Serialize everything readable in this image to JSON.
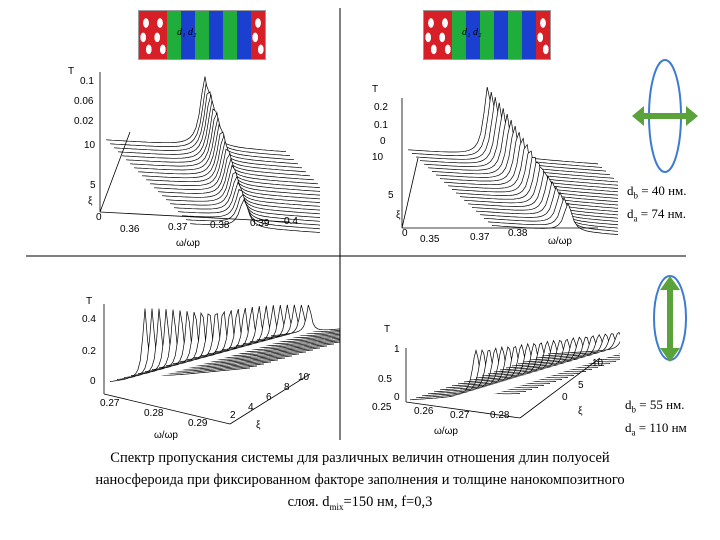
{
  "strip_colors": [
    "#d61f26",
    "#d61f26",
    "#1fae3b",
    "#1b3fcf",
    "#1fae3b",
    "#1b3fcf",
    "#1fae3b",
    "#1b3fcf",
    "#d61f26"
  ],
  "strips": [
    {
      "label": "d₁ d₂"
    },
    {
      "label": "d₁ d₂"
    }
  ],
  "plots": {
    "top_left": {
      "t_ticks": [
        "0.1",
        "0.06",
        "0.02"
      ],
      "t_label": "T",
      "xi_ticks": [
        "10",
        "5",
        "0"
      ],
      "xi_label": "ξ",
      "w_ticks": [
        "0.36",
        "0.37",
        "0.38",
        "0.39",
        "0.4"
      ],
      "w_label": "ω/ωp"
    },
    "top_right": {
      "t_ticks": [
        "0.2",
        "0.1",
        "0"
      ],
      "t_label": "T",
      "xi_ticks": [
        "10",
        "5",
        "0"
      ],
      "xi_label": "ξ",
      "w_ticks": [
        "0.35",
        "0.37",
        "0.38"
      ],
      "w_label": "ω/ωp"
    },
    "bottom_left": {
      "t_ticks": [
        "0.4",
        "0.2",
        "0"
      ],
      "t_label": "T",
      "xi_ticks": [
        "10",
        "8",
        "6",
        "4",
        "2"
      ],
      "xi_label": "ξ",
      "w_ticks": [
        "0.27",
        "0.28",
        "0.29"
      ],
      "w_label": "ω/ωp"
    },
    "bottom_right": {
      "t_ticks": [
        "1",
        "0.5",
        "0"
      ],
      "t_label": "T",
      "xi_ticks": [
        "10",
        "5",
        "0"
      ],
      "xi_label": "ξ",
      "w_ticks": [
        "0.25",
        "0.26",
        "0.27",
        "0.28"
      ],
      "w_label": "ω/ωp"
    }
  },
  "notes": {
    "top": {
      "line1_label": "d",
      "line1_sub": "b",
      "line1_value": " = 40 нм.",
      "line2_label": "d",
      "line2_sub": "a",
      "line2_value": " = 74 нм."
    },
    "bottom": {
      "line1_label": "d",
      "line1_sub": "b",
      "line1_value": " = 55 нм.",
      "line2_label": "d",
      "line2_sub": "a",
      "line2_value": " = 110 нм"
    }
  },
  "caption": {
    "line1": "Спектр пропускания системы для различных величин отношения длин полуосей",
    "line2": "наносфероида при фиксированном факторе заполнения и толщине нанокомпозитного",
    "line3_pre": "слоя. d",
    "line3_sub": "mix",
    "line3_post": "=150 нм, f=0,3"
  },
  "colors": {
    "ellipse": "#3c7bd0",
    "arrow": "#5aa33b",
    "red": "#d61f26",
    "green": "#1fae3b",
    "blue": "#1b3fcf"
  }
}
